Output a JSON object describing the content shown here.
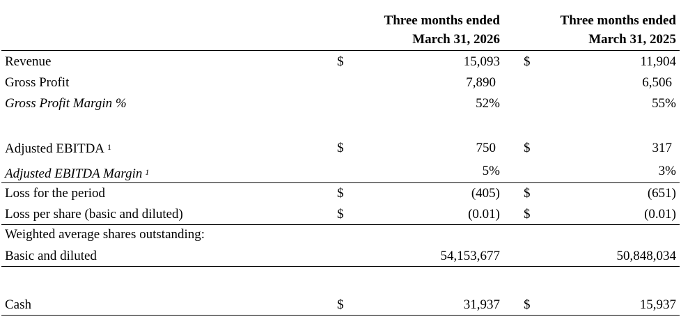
{
  "header": {
    "col1_line1": "Three months ended",
    "col1_line2": "March 31, 2026",
    "col2_line1": "Three months ended",
    "col2_line2": "March 31, 2025"
  },
  "currency_symbol": "$",
  "rows": {
    "revenue": {
      "label": "Revenue",
      "v1": "15,093",
      "v2": "11,904"
    },
    "gross_profit": {
      "label": "Gross Profit",
      "v1": "7,890",
      "v2": "6,506"
    },
    "gross_margin": {
      "label": "Gross Profit Margin %",
      "v1": "52%",
      "v2": "55%"
    },
    "adj_ebitda": {
      "label": "Adjusted EBITDA",
      "footnote": "1",
      "v1": "750",
      "v2": "317"
    },
    "adj_ebitda_margin": {
      "label": "Adjusted EBITDA Margin",
      "footnote": "1",
      "v1": "5%",
      "v2": "3%"
    },
    "loss": {
      "label": "Loss for the period",
      "v1": "(405)",
      "v2": "(651)"
    },
    "loss_per_share": {
      "label": "Loss per share (basic and diluted)",
      "v1": "(0.01)",
      "v2": "(0.01)"
    },
    "weighted_shares": {
      "label": "Weighted average shares outstanding:"
    },
    "basic_diluted": {
      "label": "Basic and diluted",
      "v1": "54,153,677",
      "v2": "50,848,034"
    },
    "cash": {
      "label": "Cash",
      "v1": "31,937",
      "v2": "15,937"
    }
  }
}
